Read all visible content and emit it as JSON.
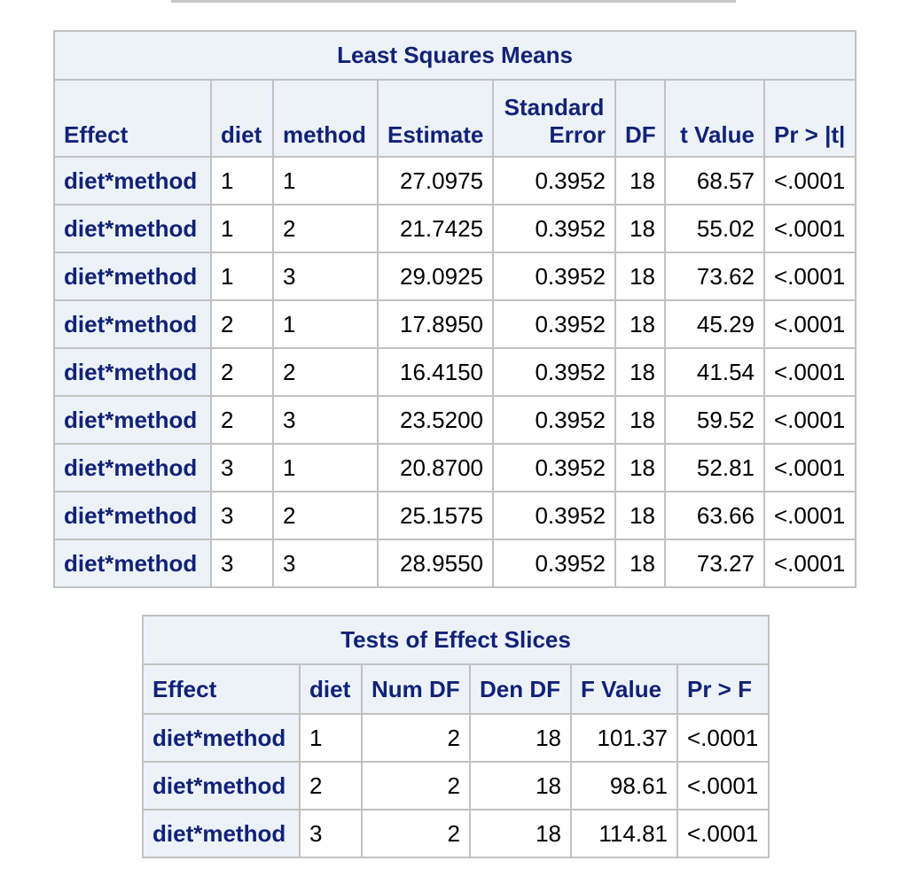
{
  "lsmeans": {
    "title": "Least Squares Means",
    "columns": [
      "Effect",
      "diet",
      "method",
      "Estimate",
      "Standard",
      "Error",
      "DF",
      "t Value",
      "Pr > |t|"
    ],
    "rows": [
      {
        "effect": "diet*method",
        "diet": "1",
        "method": "1",
        "estimate": "27.0975",
        "stderr": "0.3952",
        "df": "18",
        "tvalue": "68.57",
        "p": "<.0001"
      },
      {
        "effect": "diet*method",
        "diet": "1",
        "method": "2",
        "estimate": "21.7425",
        "stderr": "0.3952",
        "df": "18",
        "tvalue": "55.02",
        "p": "<.0001"
      },
      {
        "effect": "diet*method",
        "diet": "1",
        "method": "3",
        "estimate": "29.0925",
        "stderr": "0.3952",
        "df": "18",
        "tvalue": "73.62",
        "p": "<.0001"
      },
      {
        "effect": "diet*method",
        "diet": "2",
        "method": "1",
        "estimate": "17.8950",
        "stderr": "0.3952",
        "df": "18",
        "tvalue": "45.29",
        "p": "<.0001"
      },
      {
        "effect": "diet*method",
        "diet": "2",
        "method": "2",
        "estimate": "16.4150",
        "stderr": "0.3952",
        "df": "18",
        "tvalue": "41.54",
        "p": "<.0001"
      },
      {
        "effect": "diet*method",
        "diet": "2",
        "method": "3",
        "estimate": "23.5200",
        "stderr": "0.3952",
        "df": "18",
        "tvalue": "59.52",
        "p": "<.0001"
      },
      {
        "effect": "diet*method",
        "diet": "3",
        "method": "1",
        "estimate": "20.8700",
        "stderr": "0.3952",
        "df": "18",
        "tvalue": "52.81",
        "p": "<.0001"
      },
      {
        "effect": "diet*method",
        "diet": "3",
        "method": "2",
        "estimate": "25.1575",
        "stderr": "0.3952",
        "df": "18",
        "tvalue": "63.66",
        "p": "<.0001"
      },
      {
        "effect": "diet*method",
        "diet": "3",
        "method": "3",
        "estimate": "28.9550",
        "stderr": "0.3952",
        "df": "18",
        "tvalue": "73.27",
        "p": "<.0001"
      }
    ]
  },
  "slices": {
    "title": "Tests of Effect Slices",
    "columns": [
      "Effect",
      "diet",
      "Num DF",
      "Den DF",
      "F Value",
      "Pr > F"
    ],
    "rows": [
      {
        "effect": "diet*method",
        "diet": "1",
        "numdf": "2",
        "dendf": "18",
        "fvalue": "101.37",
        "p": "<.0001"
      },
      {
        "effect": "diet*method",
        "diet": "2",
        "numdf": "2",
        "dendf": "18",
        "fvalue": "98.61",
        "p": "<.0001"
      },
      {
        "effect": "diet*method",
        "diet": "3",
        "numdf": "2",
        "dendf": "18",
        "fvalue": "114.81",
        "p": "<.0001"
      }
    ]
  },
  "colors": {
    "header_bg": "#edf2f9",
    "header_text": "#112277",
    "border": "#c1c1c1"
  }
}
